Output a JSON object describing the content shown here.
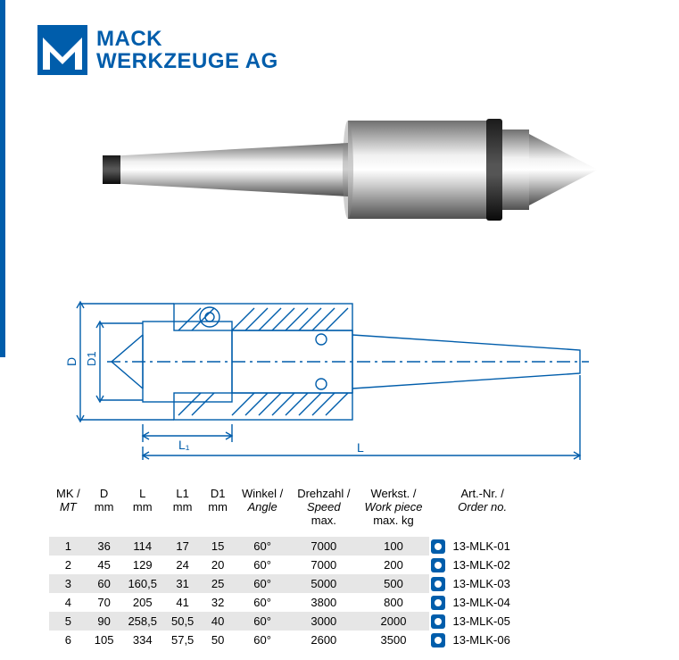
{
  "brand": {
    "line1": "MACK",
    "line2": "WERKZEUGE AG"
  },
  "colors": {
    "accent": "#005dab",
    "row_alt": "#e6e6e6",
    "row_base": "#ffffff",
    "text": "#000000",
    "drawing": "#005dab"
  },
  "drawing_labels": {
    "D": "D",
    "D1": "D1",
    "L": "L",
    "L1": "L1"
  },
  "table": {
    "headers": [
      {
        "l1": "MK /",
        "l2": "MT"
      },
      {
        "l1": "D",
        "l2": "mm"
      },
      {
        "l1": "L",
        "l2": "mm"
      },
      {
        "l1": "L1",
        "l2": "mm"
      },
      {
        "l1": "D1",
        "l2": "mm"
      },
      {
        "l1": "Winkel /",
        "l2": "Angle"
      },
      {
        "l1": "Drehzahl /",
        "l2": "Speed",
        "l3": "max."
      },
      {
        "l1": "Werkst. /",
        "l2": "Work piece",
        "l3": "max. kg"
      },
      {
        "l1": "Art.-Nr. /",
        "l2": "Order no."
      }
    ],
    "rows": [
      {
        "mk": "1",
        "d": "36",
        "l": "114",
        "l1": "17",
        "d1": "15",
        "ang": "60°",
        "spd": "7000",
        "wp": "100",
        "art": "13-MLK-01"
      },
      {
        "mk": "2",
        "d": "45",
        "l": "129",
        "l1": "24",
        "d1": "20",
        "ang": "60°",
        "spd": "7000",
        "wp": "200",
        "art": "13-MLK-02"
      },
      {
        "mk": "3",
        "d": "60",
        "l": "160,5",
        "l1": "31",
        "d1": "25",
        "ang": "60°",
        "spd": "5000",
        "wp": "500",
        "art": "13-MLK-03"
      },
      {
        "mk": "4",
        "d": "70",
        "l": "205",
        "l1": "41",
        "d1": "32",
        "ang": "60°",
        "spd": "3800",
        "wp": "800",
        "art": "13-MLK-04"
      },
      {
        "mk": "5",
        "d": "90",
        "l": "258,5",
        "l1": "50,5",
        "d1": "40",
        "ang": "60°",
        "spd": "3000",
        "wp": "2000",
        "art": "13-MLK-05"
      },
      {
        "mk": "6",
        "d": "105",
        "l": "334",
        "l1": "57,5",
        "d1": "50",
        "ang": "60°",
        "spd": "2600",
        "wp": "3500",
        "art": "13-MLK-06"
      }
    ]
  }
}
